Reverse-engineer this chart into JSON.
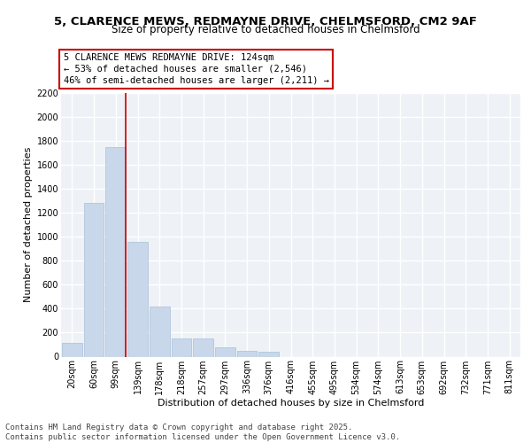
{
  "title1": "5, CLARENCE MEWS, REDMAYNE DRIVE, CHELMSFORD, CM2 9AF",
  "title2": "Size of property relative to detached houses in Chelmsford",
  "xlabel": "Distribution of detached houses by size in Chelmsford",
  "ylabel": "Number of detached properties",
  "categories": [
    "20sqm",
    "60sqm",
    "99sqm",
    "139sqm",
    "178sqm",
    "218sqm",
    "257sqm",
    "297sqm",
    "336sqm",
    "376sqm",
    "416sqm",
    "455sqm",
    "495sqm",
    "534sqm",
    "574sqm",
    "613sqm",
    "653sqm",
    "692sqm",
    "732sqm",
    "771sqm",
    "811sqm"
  ],
  "values": [
    115,
    1285,
    1750,
    960,
    420,
    155,
    155,
    75,
    45,
    40,
    0,
    0,
    0,
    0,
    0,
    0,
    0,
    0,
    0,
    0,
    0
  ],
  "bar_color": "#c8d8ea",
  "bar_edge_color": "#a8c0d8",
  "vline_color": "#cc0000",
  "annotation_text": "5 CLARENCE MEWS REDMAYNE DRIVE: 124sqm\n← 53% of detached houses are smaller (2,546)\n46% of semi-detached houses are larger (2,211) →",
  "annotation_box_color": "#ffffff",
  "annotation_border_color": "#cc0000",
  "ylim": [
    0,
    2200
  ],
  "yticks": [
    0,
    200,
    400,
    600,
    800,
    1000,
    1200,
    1400,
    1600,
    1800,
    2000,
    2200
  ],
  "bg_color": "#eef2f7",
  "grid_color": "#ffffff",
  "footer1": "Contains HM Land Registry data © Crown copyright and database right 2025.",
  "footer2": "Contains public sector information licensed under the Open Government Licence v3.0.",
  "title1_fontsize": 9.5,
  "title2_fontsize": 8.5,
  "xlabel_fontsize": 8,
  "ylabel_fontsize": 8,
  "tick_fontsize": 7,
  "annotation_fontsize": 7.5,
  "footer_fontsize": 6.5
}
